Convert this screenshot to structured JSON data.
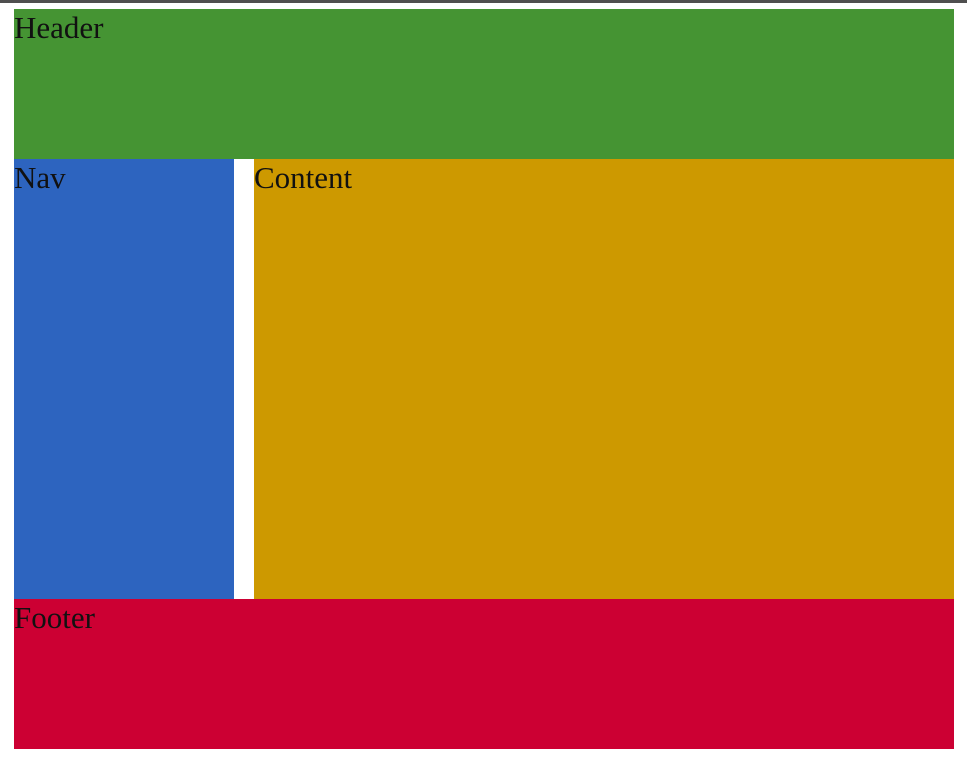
{
  "page": {
    "background_color": "#ffffff",
    "top_rule_color": "#4f4f4f"
  },
  "layout": {
    "header": {
      "label": "Header",
      "background_color": "#459433"
    },
    "nav": {
      "label": "Nav",
      "background_color": "#2d64bf"
    },
    "content": {
      "label": "Content",
      "background_color": "#cd9900"
    },
    "footer": {
      "label": "Footer",
      "background_color": "#cc0033"
    }
  }
}
